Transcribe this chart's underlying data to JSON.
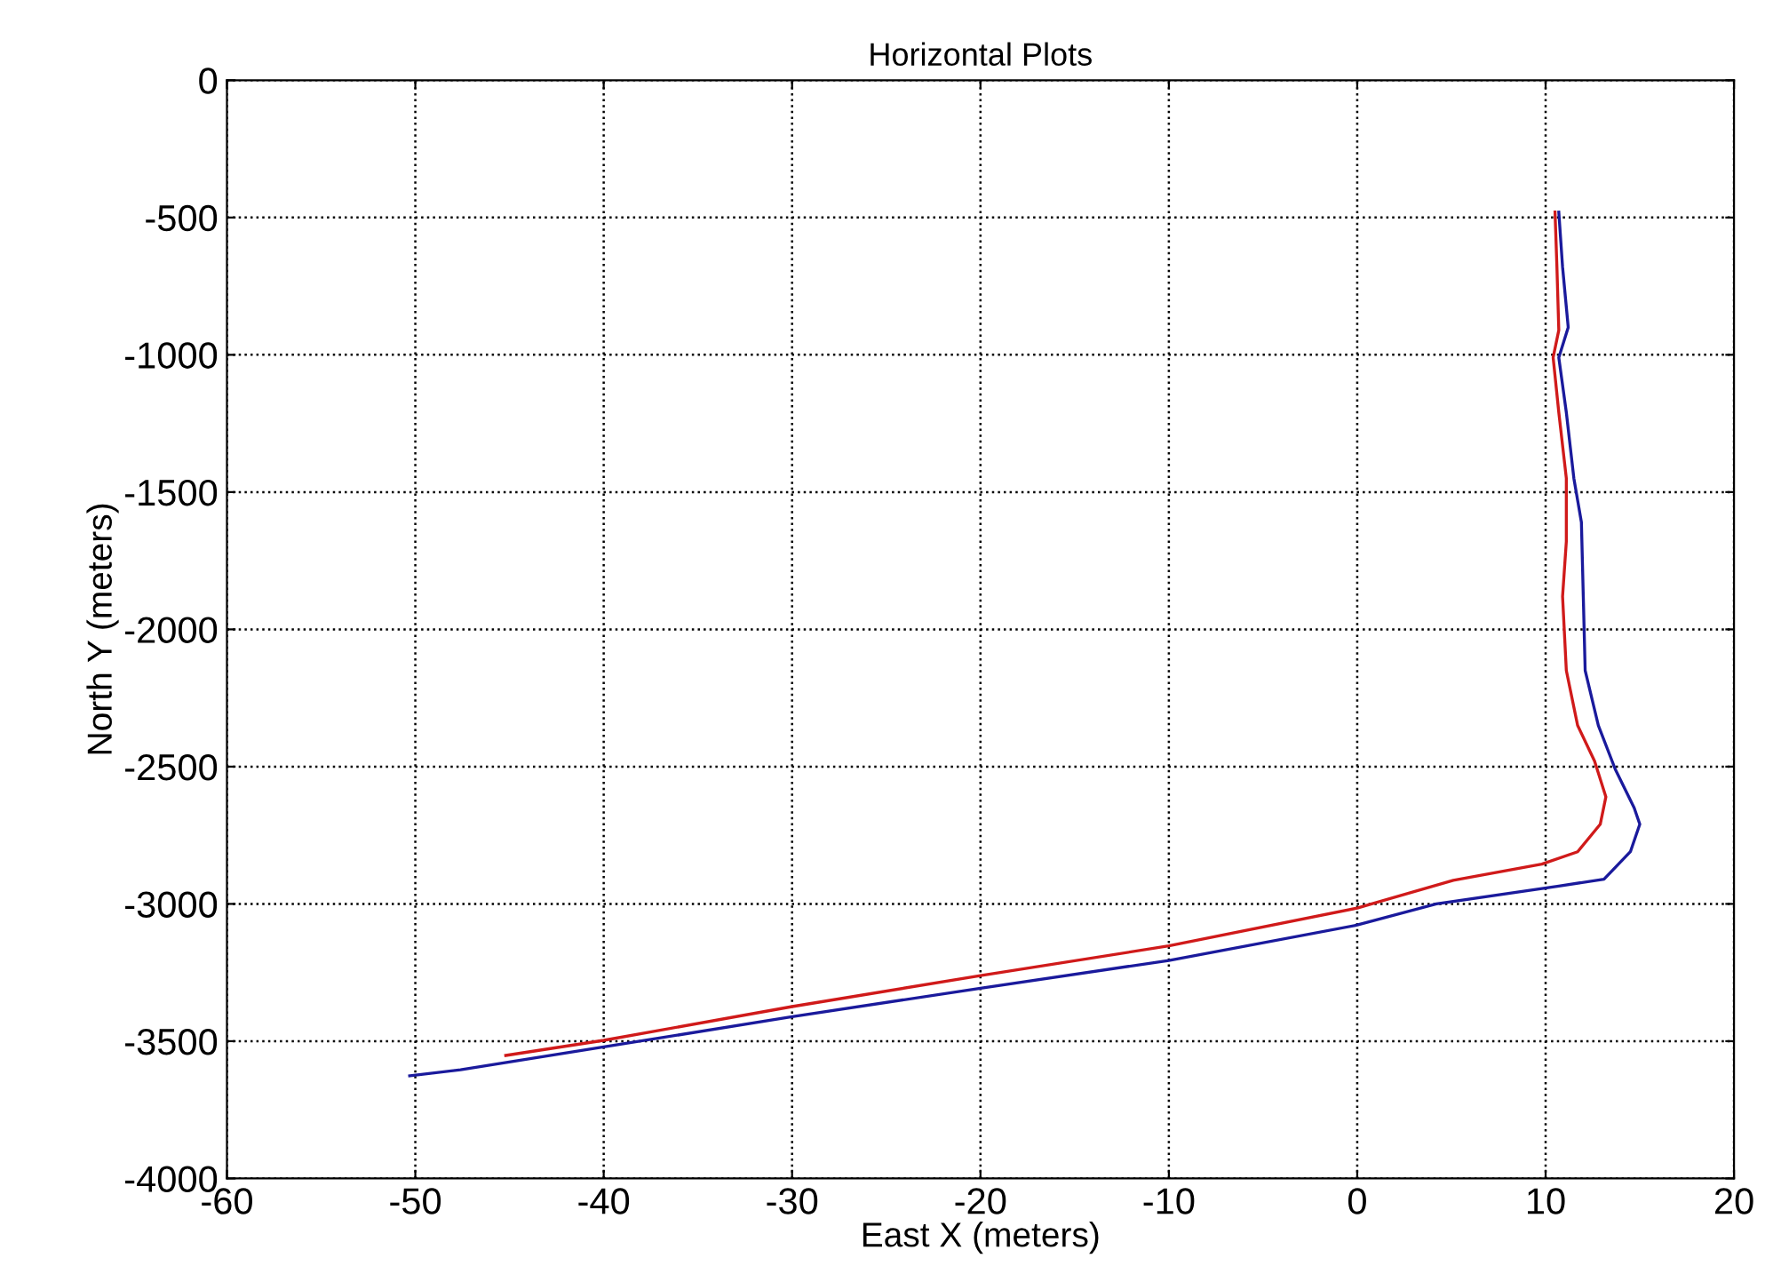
{
  "chart_data": {
    "type": "line",
    "title": "Horizontal Plots",
    "xlabel": "East X (meters)",
    "ylabel": "North Y (meters)",
    "xlim": [
      -60,
      20
    ],
    "xticks": [
      -60,
      -50,
      -40,
      -30,
      -20,
      -10,
      0,
      10,
      20
    ],
    "ylim": [
      -4000,
      0
    ],
    "yticks": [
      -4000,
      -3500,
      -3000,
      -2500,
      -2000,
      -1500,
      -1000,
      -500,
      0
    ],
    "grid": true,
    "line_style": "solid",
    "marker": "none",
    "series": [
      {
        "color": "#1a1a9c",
        "x": [
          10.7,
          10.9,
          11.2,
          10.7,
          11.1,
          11.5,
          11.9,
          12.0,
          12.1,
          12.8,
          13.7,
          14.7,
          15.0,
          14.5,
          13.1,
          10.7,
          4.2,
          0,
          -10,
          -20,
          -30,
          -40,
          -47.6,
          -50.3
        ],
        "values": [
          -480,
          -680,
          -900,
          -1010,
          -1210,
          -1450,
          -1610,
          -1880,
          -2150,
          -2350,
          -2510,
          -2650,
          -2710,
          -2810,
          -2910,
          -2935,
          -3000,
          -3077,
          -3206,
          -3307,
          -3411,
          -3521,
          -3604,
          -3626
        ]
      },
      {
        "color": "#d01a1a",
        "x": [
          10.5,
          10.6,
          10.7,
          10.4,
          10.7,
          11.1,
          11.1,
          10.9,
          11.1,
          11.7,
          12.6,
          13.2,
          12.9,
          11.7,
          9.8,
          5.1,
          0,
          -10,
          -20,
          -30,
          -40,
          -45.2
        ],
        "values": [
          -480,
          -680,
          -910,
          -1010,
          -1210,
          -1450,
          -1680,
          -1880,
          -2150,
          -2350,
          -2480,
          -2610,
          -2710,
          -2810,
          -2855,
          -2914,
          -3015,
          -3153,
          -3261,
          -3374,
          -3497,
          -3552
        ]
      }
    ]
  }
}
